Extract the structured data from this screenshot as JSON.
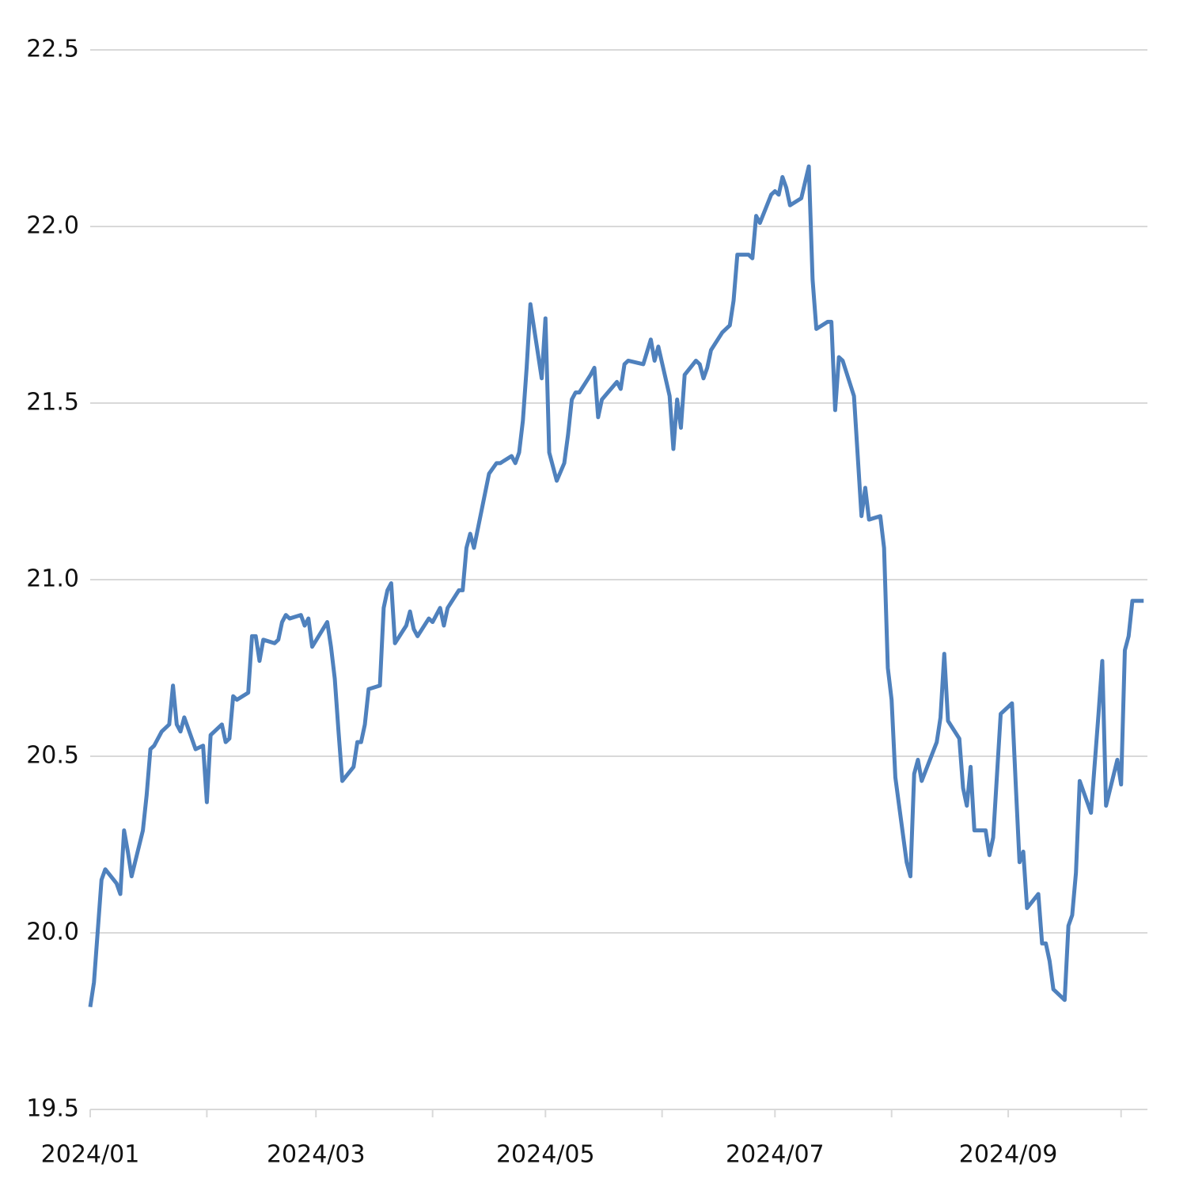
{
  "chart_data": {
    "type": "line",
    "color": "#4f81bd",
    "grid": true,
    "x": [
      0,
      1,
      3,
      4,
      7,
      8,
      9,
      10,
      11,
      14,
      15,
      16,
      17,
      19,
      21,
      22,
      23,
      24,
      25,
      28,
      30,
      31,
      32,
      35,
      36,
      37,
      38,
      39,
      42,
      43,
      44,
      45,
      46,
      49,
      50,
      51,
      52,
      53,
      56,
      57,
      58,
      59,
      63,
      64,
      65,
      66,
      67,
      70,
      71,
      72,
      73,
      74,
      77,
      78,
      79,
      80,
      81,
      84,
      85,
      86,
      87,
      90,
      91,
      93,
      94,
      95,
      98,
      99,
      100,
      101,
      102,
      106,
      108,
      109,
      112,
      113,
      114,
      115,
      116,
      117,
      119,
      120,
      121,
      122,
      124,
      126,
      127,
      128,
      129,
      130,
      133,
      134,
      135,
      136,
      140,
      141,
      142,
      143,
      147,
      149,
      150,
      151,
      154,
      155,
      156,
      157,
      158,
      161,
      162,
      163,
      164,
      165,
      168,
      169,
      170,
      171,
      172,
      175,
      176,
      177,
      178,
      181,
      182,
      183,
      184,
      185,
      186,
      189,
      191,
      192,
      193,
      196,
      197,
      198,
      199,
      200,
      203,
      204,
      205,
      206,
      207,
      210,
      211,
      212,
      213,
      214,
      217,
      218,
      219,
      220,
      221,
      225,
      226,
      227,
      228,
      231,
      232,
      233,
      234,
      235,
      238,
      239,
      240,
      242,
      245,
      246,
      247,
      248,
      249,
      252,
      253,
      254,
      255,
      256,
      259,
      260,
      261,
      262,
      263,
      266,
      267,
      268,
      269,
      270,
      273,
      274,
      275,
      276,
      277,
      280
    ],
    "values": [
      19.79,
      19.86,
      20.15,
      20.18,
      20.14,
      20.11,
      20.29,
      20.23,
      20.16,
      20.29,
      20.39,
      20.52,
      20.53,
      20.57,
      20.59,
      20.7,
      20.59,
      20.57,
      20.61,
      20.52,
      20.53,
      20.37,
      20.56,
      20.59,
      20.54,
      20.55,
      20.67,
      20.66,
      20.68,
      20.84,
      20.84,
      20.77,
      20.83,
      20.82,
      20.83,
      20.88,
      20.9,
      20.89,
      20.9,
      20.87,
      20.89,
      20.81,
      20.88,
      20.81,
      20.72,
      20.57,
      20.43,
      20.47,
      20.54,
      20.54,
      20.59,
      20.69,
      20.7,
      20.92,
      20.97,
      20.99,
      20.82,
      20.87,
      20.91,
      20.86,
      20.84,
      20.89,
      20.88,
      20.92,
      20.87,
      20.92,
      20.97,
      20.97,
      21.09,
      21.13,
      21.09,
      21.3,
      21.33,
      21.33,
      21.35,
      21.33,
      21.36,
      21.45,
      21.6,
      21.78,
      21.64,
      21.57,
      21.74,
      21.36,
      21.28,
      21.33,
      21.41,
      21.51,
      21.53,
      21.53,
      21.58,
      21.6,
      21.46,
      21.51,
      21.56,
      21.54,
      21.61,
      21.62,
      21.61,
      21.68,
      21.62,
      21.66,
      21.52,
      21.37,
      21.51,
      21.43,
      21.58,
      21.62,
      21.61,
      21.57,
      21.6,
      21.65,
      21.7,
      21.71,
      21.72,
      21.79,
      21.92,
      21.92,
      21.91,
      22.03,
      22.01,
      22.09,
      22.1,
      22.09,
      22.14,
      22.11,
      22.06,
      22.08,
      22.17,
      21.85,
      21.71,
      21.73,
      21.73,
      21.48,
      21.63,
      21.62,
      21.52,
      21.35,
      21.18,
      21.26,
      21.17,
      21.18,
      21.09,
      20.75,
      20.66,
      20.44,
      20.2,
      20.16,
      20.45,
      20.49,
      20.43,
      20.54,
      20.61,
      20.79,
      20.6,
      20.55,
      20.41,
      20.36,
      20.47,
      20.29,
      20.29,
      20.22,
      20.27,
      20.62,
      20.65,
      20.42,
      20.2,
      20.23,
      20.07,
      20.11,
      19.97,
      19.97,
      19.92,
      19.84,
      19.81,
      20.02,
      20.05,
      20.17,
      20.43,
      20.34,
      20.48,
      20.62,
      20.77,
      20.36,
      20.49,
      20.42,
      20.8,
      20.84,
      20.94,
      20.94
    ],
    "xlim": [
      0,
      281
    ],
    "xticks": [
      {
        "value": 0,
        "label": "2024/01"
      },
      {
        "value": 60,
        "label": "2024/03"
      },
      {
        "value": 121,
        "label": "2024/05"
      },
      {
        "value": 182,
        "label": "2024/07"
      },
      {
        "value": 244,
        "label": "2024/09"
      }
    ],
    "xminorticks": [
      31,
      91,
      152,
      213,
      274
    ],
    "ylim": [
      19.5,
      22.5
    ],
    "yticks": [
      19.5,
      {
        "value": 20,
        "label": "20.0"
      },
      20.5,
      {
        "value": 21,
        "label": "21.0"
      },
      21.5,
      {
        "value": 22,
        "label": "22.0"
      },
      22.5
    ]
  }
}
